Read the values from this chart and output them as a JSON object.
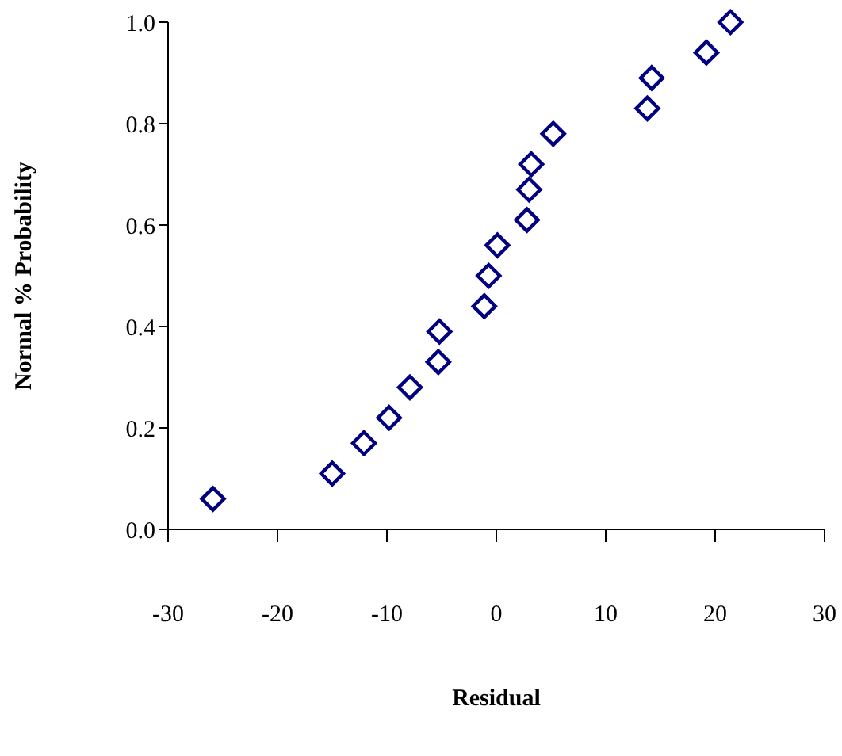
{
  "chart_data": {
    "type": "scatter",
    "xlabel": "Residual",
    "ylabel": "Normal % Probability",
    "x": [
      -25.9,
      -15.0,
      -12.1,
      -9.8,
      -7.9,
      -5.3,
      -5.2,
      -1.1,
      -0.7,
      0.1,
      2.8,
      3.0,
      3.2,
      5.2,
      13.8,
      14.2,
      19.2,
      21.4
    ],
    "series": [
      {
        "color": "#000080",
        "values": [
          0.06,
          0.11,
          0.17,
          0.22,
          0.28,
          0.33,
          0.39,
          0.44,
          0.5,
          0.56,
          0.61,
          0.67,
          0.72,
          0.78,
          0.83,
          0.89,
          0.94,
          1.0
        ]
      }
    ],
    "xlim": [
      -30,
      30
    ],
    "xticks": [
      -30,
      -20,
      -10,
      0,
      10,
      20,
      30
    ],
    "ylim": [
      0,
      1
    ],
    "yticks": [
      {
        "value": 0,
        "label": "0.0"
      },
      0.2,
      0.4,
      0.6,
      0.8,
      {
        "value": 1,
        "label": "1.0"
      }
    ],
    "marker": "diamond",
    "grid": false
  }
}
